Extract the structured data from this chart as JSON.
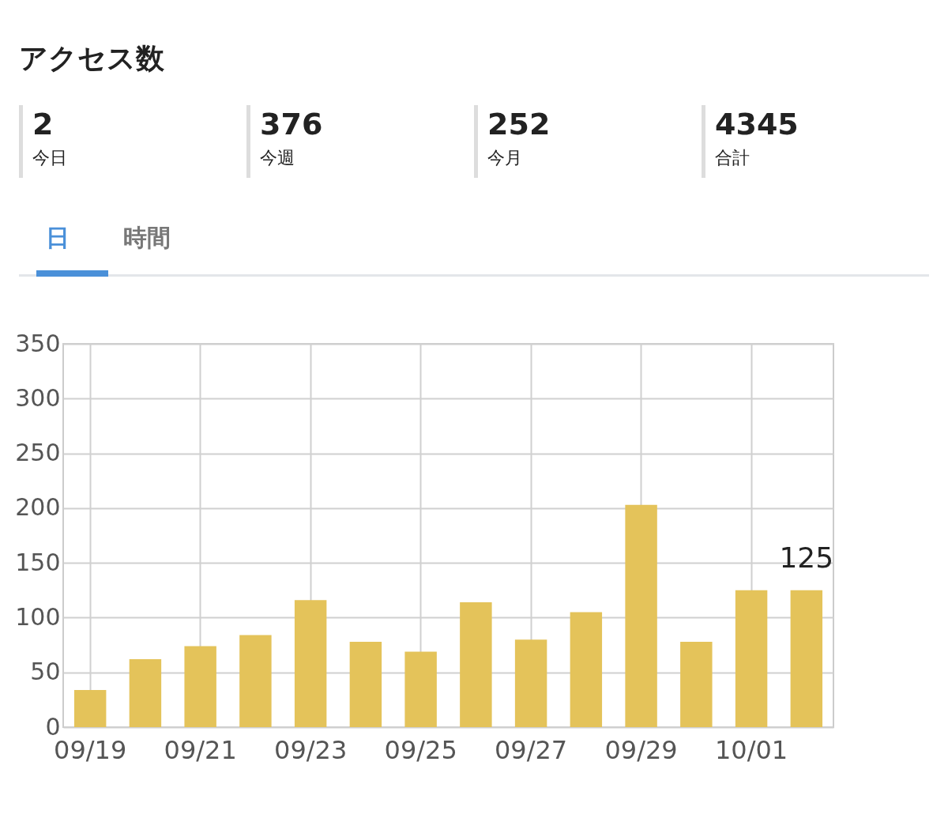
{
  "chart_data": [
    {
      "type": "other",
      "title": "アクセス数",
      "categories": [
        "今日",
        "今週",
        "今月",
        "合計"
      ],
      "values": [
        2,
        376,
        252,
        4345
      ],
      "data_labels": true
    },
    {
      "type": "bar",
      "annotations": [
        "日",
        "時間"
      ],
      "categories": [
        "09/19",
        null,
        "09/21",
        null,
        "09/23",
        null,
        "09/25",
        null,
        "09/27",
        null,
        "09/29",
        null,
        "10/01",
        null
      ],
      "values": [
        34,
        62,
        74,
        84,
        116,
        78,
        69,
        114,
        80,
        105,
        203,
        78,
        125,
        125
      ],
      "value_labels": [
        null,
        null,
        null,
        null,
        null,
        null,
        null,
        null,
        null,
        null,
        null,
        null,
        null,
        "125"
      ],
      "color": "#e4c35a",
      "ylim": [
        0,
        350
      ],
      "yticks": [
        0,
        50,
        100,
        150,
        200,
        250,
        300,
        350
      ],
      "grid": true
    }
  ]
}
